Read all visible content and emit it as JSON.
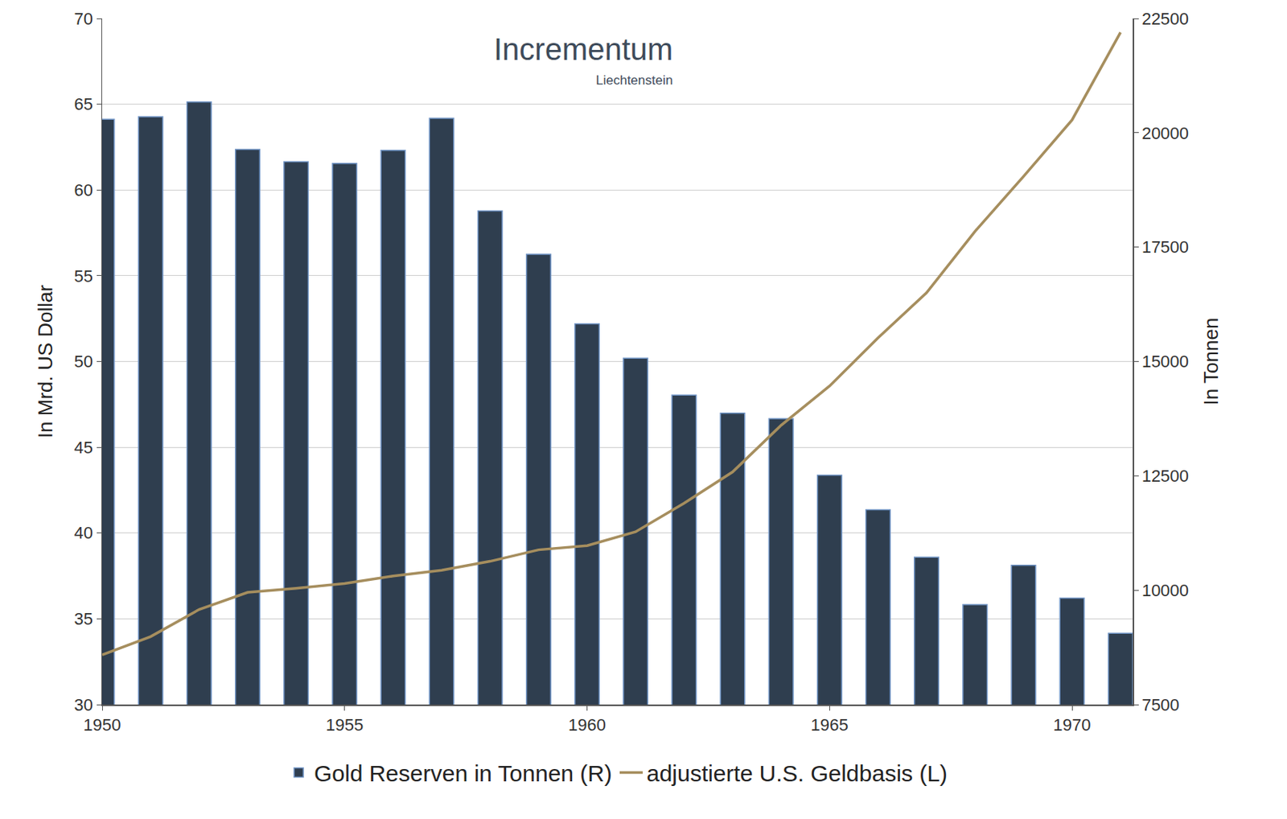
{
  "chart_data": {
    "type": "bar",
    "annotations": [
      "Incrementum",
      "Liechtenstein"
    ],
    "x_label": null,
    "y_label": "In Mrd. US Dollar",
    "y2_label": "In Tonnen",
    "x": [
      1950,
      1951,
      1952,
      1953,
      1954,
      1955,
      1956,
      1957,
      1958,
      1959,
      1960,
      1961,
      1962,
      1963,
      1964,
      1965,
      1966,
      1967,
      1968,
      1969,
      1970,
      1971
    ],
    "series": [
      {
        "name": "Gold Reserven in Tonnen (R)",
        "type": "bar",
        "axis": "y2",
        "color": "#2f3e4f",
        "values": [
          20297,
          20351,
          20673,
          19635,
          19367,
          19331,
          19617,
          20316,
          18293,
          17344,
          15823,
          15071,
          14266,
          13872,
          13747,
          12512,
          11760,
          10722,
          9684,
          10543,
          9827,
          9057
        ]
      },
      {
        "name": "adjustierte U.S. Geldbasis (L)",
        "type": "line",
        "axis": "y",
        "color": "#a68e5e",
        "line_style": "solid",
        "values": [
          32.9,
          33.96,
          35.54,
          36.54,
          36.78,
          37.06,
          37.49,
          37.83,
          38.35,
          39.02,
          39.26,
          40.07,
          41.74,
          43.56,
          46.28,
          48.57,
          51.38,
          54.01,
          57.59,
          60.79,
          64.08,
          69.19
        ]
      }
    ],
    "xlim": [
      1950,
      1971.25
    ],
    "xticks": [
      1950,
      1955,
      1960,
      1965,
      1970
    ],
    "ylim": [
      30,
      70
    ],
    "yticks": [
      30,
      35,
      40,
      45,
      50,
      55,
      60,
      65,
      70
    ],
    "y2lim": [
      7500,
      22500
    ],
    "y2ticks": [
      7500,
      10000,
      12500,
      15000,
      17500,
      20000,
      22500
    ],
    "grid": true,
    "legend": "bottom"
  }
}
